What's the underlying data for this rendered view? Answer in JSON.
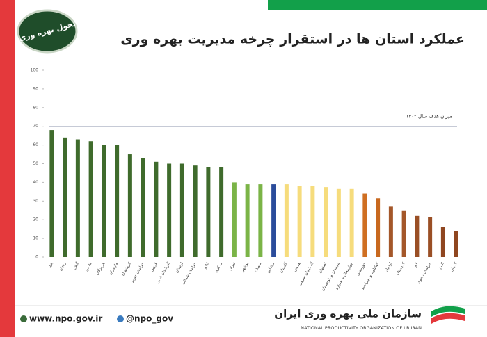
{
  "chart_data": {
    "type": "bar",
    "title": "عملکرد استان ها در استقرار چرخه مدیریت بهره وری",
    "categories": [
      "یزد",
      "زنجان",
      "گیلان",
      "فارس",
      "هرمزگان",
      "مازندران",
      "کرمانشاه",
      "خراسان جنوبی",
      "قزوین",
      "آذربایجان غربی",
      "لرستان",
      "خراسان شمالی",
      "ایلام",
      "مرکزی",
      "تهران",
      "بوشهر",
      "سمنان",
      "میانگین",
      "گلستان",
      "همدان",
      "آذربایجان شرقی",
      "اصفهان",
      "سیستان و بلوچستان",
      "چهارمحال و بختیاری",
      "خوزستان",
      "کهگیلویه و بویراحمد",
      "اردبیل",
      "کردستان",
      "قم",
      "خراسان رضوی",
      "البرز",
      "کرمان"
    ],
    "values": [
      68,
      64,
      63,
      62,
      60,
      60,
      55,
      53,
      51,
      50,
      50,
      49,
      48,
      48,
      40,
      39,
      39,
      39,
      39,
      38,
      38,
      37.5,
      36.5,
      36.5,
      34,
      31.5,
      27,
      25,
      22,
      21.5,
      16,
      14
    ],
    "colors": [
      "#3f6b2c",
      "#3f6b2c",
      "#3f6b2c",
      "#3f6b2c",
      "#3f6b2c",
      "#3f6b2c",
      "#3f6b2c",
      "#3f6b2c",
      "#3f6b2c",
      "#3f6b2c",
      "#3f6b2c",
      "#3f6b2c",
      "#3f6b2c",
      "#3f6b2c",
      "#7bb447",
      "#7bb447",
      "#7bb447",
      "#2b4c9b",
      "#f6dc7c",
      "#f6dc7c",
      "#f6dc7c",
      "#f6dc7c",
      "#f6dc7c",
      "#f6dc7c",
      "#cf6f22",
      "#c8681e",
      "#a4572a",
      "#a4572a",
      "#9a4f25",
      "#9a4f25",
      "#8f4620",
      "#8f4620"
    ],
    "ylim": [
      0,
      100
    ],
    "yticks": [
      0,
      10,
      20,
      30,
      40,
      50,
      60,
      70,
      80,
      90,
      100
    ],
    "target": {
      "value": 70,
      "label": "میزان هدف سال ۱۴۰۲"
    }
  },
  "badge": "تحول بهره وری",
  "footer": {
    "website": "www.npo.gov.ir",
    "handle": "@npo_gov",
    "org_fa": "سازمان ملی بهره وری ایران",
    "org_en": "NATIONAL PRODUCTIVITY ORGANIZATION OF I.R.IRAN"
  }
}
